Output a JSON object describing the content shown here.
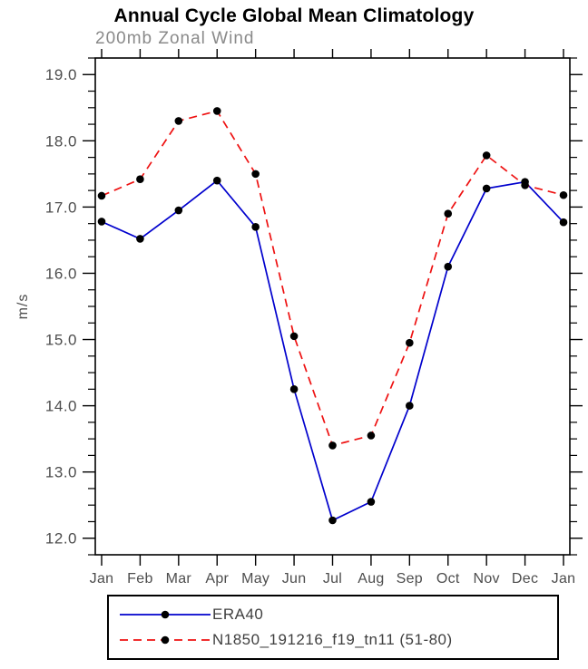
{
  "chart_data": {
    "type": "line",
    "title": "Annual Cycle Global Mean Climatology",
    "subtitle": "200mb Zonal Wind",
    "ylabel": "m/s",
    "xlabel": "",
    "ylim": [
      12.0,
      19.0
    ],
    "y_axis_pad": 0.25,
    "ytick_step": 1.0,
    "yminor_step": 0.25,
    "ytick_decimals": 1,
    "grid": false,
    "legend_position": "bottom-box",
    "axis_text_color": "#4d4d4d",
    "subtitle_color": "#8a8a8a",
    "frame_color": "#000000",
    "categories": [
      "Jan",
      "Feb",
      "Mar",
      "Apr",
      "May",
      "Jun",
      "Jul",
      "Aug",
      "Sep",
      "Oct",
      "Nov",
      "Dec",
      "Jan"
    ],
    "series": [
      {
        "name": "ERA40",
        "color": "#0000cd",
        "line_style": "solid",
        "values": [
          16.78,
          16.52,
          16.95,
          17.4,
          16.7,
          14.25,
          12.27,
          12.55,
          14.0,
          16.1,
          17.28,
          17.38,
          16.77
        ]
      },
      {
        "name": "N1850_191216_f19_tn11 (51-80)",
        "color": "#ee1111",
        "line_style": "dashed",
        "values": [
          17.17,
          17.42,
          18.3,
          18.45,
          17.5,
          15.05,
          13.4,
          13.55,
          14.95,
          16.9,
          17.78,
          17.33,
          17.18
        ]
      }
    ],
    "marker": {
      "shape": "circle",
      "color": "#000000",
      "radius": 4.3
    }
  }
}
